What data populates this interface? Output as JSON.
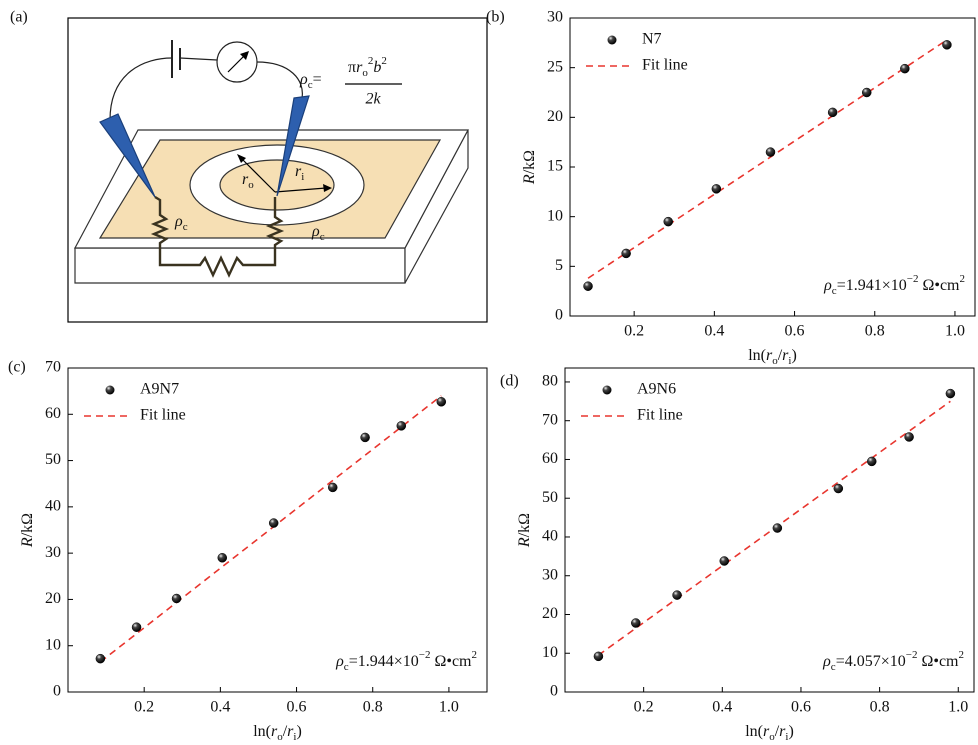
{
  "diagram": {
    "panel_label": "(a)",
    "formula": {
      "symbol": "ρ",
      "subscript": "c",
      "equals": "=",
      "numerator": [
        "π",
        "r",
        "o",
        "2",
        "b",
        "2"
      ],
      "denominator": "2k"
    },
    "contact_left": [
      "ρ",
      "c"
    ],
    "contact_right": [
      "ρ",
      "c"
    ],
    "r_outer": [
      "r",
      "o"
    ],
    "r_inner": [
      "r",
      "i"
    ]
  },
  "chart_data": [
    {
      "type": "scatter",
      "panel_label": "(b)",
      "xlabel": [
        "ln(",
        "r",
        "o",
        "/",
        "r",
        "i",
        ")"
      ],
      "ylabel": [
        "R",
        "/kΩ"
      ],
      "x": [
        0.085,
        0.18,
        0.285,
        0.405,
        0.54,
        0.695,
        0.78,
        0.875,
        0.98
      ],
      "series": [
        {
          "name": "N7",
          "color": "#000000",
          "values": [
            3.0,
            6.3,
            9.5,
            12.8,
            16.5,
            20.5,
            22.5,
            24.9,
            27.3
          ]
        },
        {
          "name": "Fit line",
          "color": "#e8352e",
          "style": "dashed",
          "x": [
            0.085,
            0.98
          ],
          "values": [
            3.8,
            27.8
          ]
        }
      ],
      "xlim": [
        0.04,
        1.05
      ],
      "ylim": [
        0,
        30
      ],
      "xticks": [
        0.2,
        0.4,
        0.6,
        0.8,
        {
          "value": 1,
          "label": "1.0"
        }
      ],
      "yticks": [
        0,
        5,
        10,
        15,
        20,
        25,
        30
      ],
      "annotation": {
        "symbol": "ρ",
        "subscript": "c",
        "text": "=1.941×10",
        "exponent": "−2",
        "unit": " Ω•cm",
        "unit_exponent": "2"
      }
    },
    {
      "type": "scatter",
      "panel_label": "(c)",
      "xlabel": [
        "ln(",
        "r",
        "o",
        "/",
        "r",
        "i",
        ")"
      ],
      "ylabel": [
        "R",
        "/kΩ"
      ],
      "x": [
        0.085,
        0.18,
        0.285,
        0.405,
        0.54,
        0.695,
        0.78,
        0.875,
        0.98
      ],
      "series": [
        {
          "name": "A9N7",
          "color": "#000000",
          "values": [
            7.2,
            14.0,
            20.2,
            29.0,
            36.5,
            44.2,
            55.0,
            57.5,
            62.7
          ]
        },
        {
          "name": "Fit line",
          "color": "#e8352e",
          "style": "dashed",
          "x": [
            0.085,
            0.98
          ],
          "values": [
            6.5,
            64.0
          ]
        }
      ],
      "xlim": [
        0,
        1.1
      ],
      "ylim": [
        0,
        70
      ],
      "xticks": [
        0.2,
        0.4,
        0.6,
        0.8,
        {
          "value": 1,
          "label": "1.0"
        }
      ],
      "yticks": [
        0,
        10,
        20,
        30,
        40,
        50,
        60,
        70
      ],
      "annotation": {
        "symbol": "ρ",
        "subscript": "c",
        "text": "=1.944×10",
        "exponent": "−2",
        "unit": " Ω•cm",
        "unit_exponent": "2"
      }
    },
    {
      "type": "scatter",
      "panel_label": "(d)",
      "xlabel": [
        "ln(",
        "r",
        "o",
        "/",
        "r",
        "i",
        ")"
      ],
      "ylabel": [
        "R",
        "/kΩ"
      ],
      "x": [
        0.085,
        0.18,
        0.285,
        0.405,
        0.54,
        0.695,
        0.78,
        0.875,
        0.98
      ],
      "series": [
        {
          "name": "A9N6",
          "color": "#000000",
          "values": [
            9.2,
            17.8,
            25.0,
            33.8,
            42.3,
            52.5,
            59.5,
            65.8,
            77.0
          ]
        },
        {
          "name": "Fit line",
          "color": "#e8352e",
          "style": "dashed",
          "x": [
            0.085,
            0.98
          ],
          "values": [
            9.5,
            75.0
          ]
        }
      ],
      "xlim": [
        0,
        1.04
      ],
      "ylim": [
        0,
        83.6
      ],
      "xticks": [
        0.2,
        0.4,
        0.6,
        0.8,
        {
          "value": 1,
          "label": "1.0"
        }
      ],
      "yticks": [
        0,
        10,
        20,
        30,
        40,
        50,
        60,
        70,
        80
      ],
      "annotation": {
        "symbol": "ρ",
        "subscript": "c",
        "text": "=4.057×10",
        "exponent": "−2",
        "unit": " Ω•cm",
        "unit_exponent": "2"
      }
    }
  ]
}
